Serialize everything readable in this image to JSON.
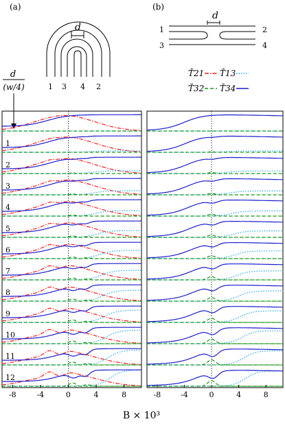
{
  "chart_data": {
    "type": "line",
    "panel_labels": [
      "(a)",
      "(b)"
    ],
    "schematic": {
      "width_label": "d",
      "lead_labels_a": [
        "1",
        "3",
        "4",
        "2"
      ],
      "lead_labels_b": [
        "1",
        "2",
        "3",
        "4"
      ]
    },
    "row_axis_label": {
      "numerator": "d",
      "denominator": "(w/4)"
    },
    "rows": [
      "",
      "1",
      "2",
      "3",
      "4",
      "5",
      "6",
      "7",
      "8",
      "9",
      "10",
      "11",
      "12"
    ],
    "legend": [
      "T̄21",
      "T̄13",
      "T̄32",
      "T̄34"
    ],
    "series": [
      {
        "name": "T̄21",
        "color": "#ff1a1a",
        "style": "dashdot"
      },
      {
        "name": "T̄13",
        "color": "#1fa6e6",
        "style": "dotted"
      },
      {
        "name": "T̄32",
        "color": "#1a9a1a",
        "style": "dashed"
      },
      {
        "name": "T̄34",
        "color": "#1a1acc",
        "style": "solid"
      }
    ],
    "x_ticks": [
      "-8",
      "-4",
      "0",
      "4",
      "8"
    ],
    "x_tick_values": [
      -8,
      -4,
      0,
      4,
      8
    ],
    "xlim": [
      -9.5,
      10.5
    ],
    "xlabel": "B × 10³"
  }
}
